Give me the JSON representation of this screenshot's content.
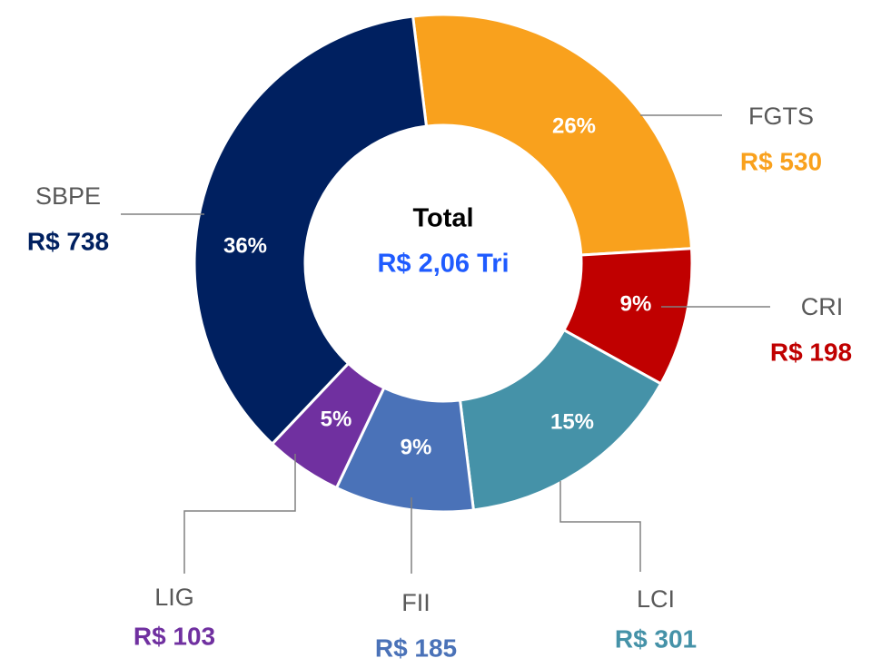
{
  "chart_data": {
    "type": "donut",
    "categories": [
      "FGTS",
      "CRI",
      "LCI",
      "FII",
      "LIG",
      "SBPE"
    ],
    "values": [
      26,
      9,
      15,
      9,
      5,
      36
    ],
    "value_labels": [
      "26%",
      "9%",
      "15%",
      "9%",
      "5%",
      "36%"
    ],
    "amount_labels": [
      "R$ 530",
      "R$ 198",
      "R$ 301",
      "R$ 185",
      "R$ 103",
      "R$ 738"
    ],
    "colors": [
      "#F9A11D",
      "#C00000",
      "#4592A8",
      "#4A72B8",
      "#7030A0",
      "#002060"
    ],
    "center_title": "Total",
    "center_value": "R$ 2,06 Tri"
  }
}
